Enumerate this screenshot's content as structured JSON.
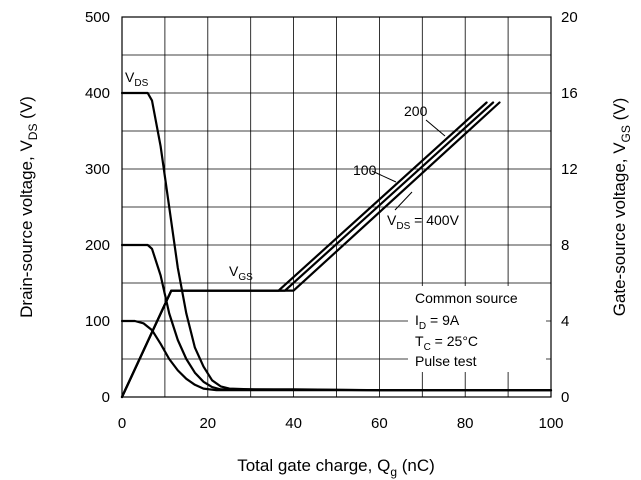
{
  "chart_data": {
    "type": "line",
    "xlabel": "Total gate charge, Q_g (nC)",
    "xlabel_main": "Total gate charge, Q",
    "xlabel_sub": "g",
    "xlabel_tail": " (nC)",
    "ylabel_left_main": "Drain-source voltage, V",
    "ylabel_left_sub": "DS",
    "ylabel_left_tail": " (V)",
    "ylabel_right_main": "Gate-source voltage, V",
    "ylabel_right_sub": "GS",
    "ylabel_right_tail": " (V)",
    "xlim": [
      0,
      100
    ],
    "ylim_left": [
      0,
      500
    ],
    "ylim_right": [
      0,
      20
    ],
    "grid": true,
    "x_ticks": [
      "0",
      "20",
      "40",
      "60",
      "80",
      "100"
    ],
    "y_left_ticks": [
      "0",
      "100",
      "200",
      "300",
      "400",
      "500"
    ],
    "y_right_ticks": [
      "0",
      "4",
      "8",
      "12",
      "16",
      "20"
    ],
    "conditions": [
      "Common source",
      "I_D = 9A",
      "T_C = 25°C",
      "Pulse test"
    ],
    "vds_curves": [
      {
        "label": "V_DS",
        "axis": "left",
        "points": [
          [
            0,
            400
          ],
          [
            6,
            400
          ],
          [
            7,
            390
          ],
          [
            9,
            330
          ],
          [
            11,
            250
          ],
          [
            13,
            170
          ],
          [
            15,
            110
          ],
          [
            17,
            65
          ],
          [
            19,
            40
          ],
          [
            21,
            22
          ],
          [
            23,
            14
          ],
          [
            25,
            11
          ],
          [
            30,
            10
          ],
          [
            40,
            10
          ],
          [
            60,
            9
          ],
          [
            100,
            9
          ]
        ]
      },
      {
        "axis": "left",
        "points": [
          [
            0,
            200
          ],
          [
            6,
            200
          ],
          [
            7,
            195
          ],
          [
            9,
            160
          ],
          [
            11,
            110
          ],
          [
            13,
            75
          ],
          [
            15,
            50
          ],
          [
            17,
            32
          ],
          [
            19,
            20
          ],
          [
            21,
            13
          ],
          [
            23,
            10
          ],
          [
            30,
            10
          ],
          [
            60,
            9
          ],
          [
            100,
            9
          ]
        ]
      },
      {
        "axis": "left",
        "points": [
          [
            0,
            100
          ],
          [
            3,
            100
          ],
          [
            5,
            97
          ],
          [
            7,
            88
          ],
          [
            9,
            70
          ],
          [
            11,
            50
          ],
          [
            13,
            35
          ],
          [
            15,
            24
          ],
          [
            17,
            16
          ],
          [
            19,
            11
          ],
          [
            22,
            9
          ],
          [
            30,
            9
          ],
          [
            100,
            9
          ]
        ]
      }
    ],
    "vgs_curves": [
      {
        "label": "V_DS = 400V",
        "axis": "right",
        "points": [
          [
            0,
            0
          ],
          [
            11.5,
            5.6
          ],
          [
            40,
            5.6
          ],
          [
            88,
            15.5
          ]
        ]
      },
      {
        "label": "100",
        "axis": "right",
        "points": [
          [
            0,
            0
          ],
          [
            11.5,
            5.6
          ],
          [
            38,
            5.6
          ],
          [
            86.5,
            15.5
          ]
        ]
      },
      {
        "label": "200",
        "axis": "right",
        "points": [
          [
            0,
            0
          ],
          [
            11.5,
            5.6
          ],
          [
            36.5,
            5.6
          ],
          [
            85,
            15.5
          ]
        ]
      }
    ],
    "annotations": {
      "vds_label_main": "V",
      "vds_label_sub": "DS",
      "vgs_label_main": "V",
      "vgs_label_sub": "GS",
      "vds400_main": "V",
      "vds400_sub": "DS",
      "vds400_tail": " = 400V",
      "label_100": "100",
      "label_200": "200"
    }
  }
}
